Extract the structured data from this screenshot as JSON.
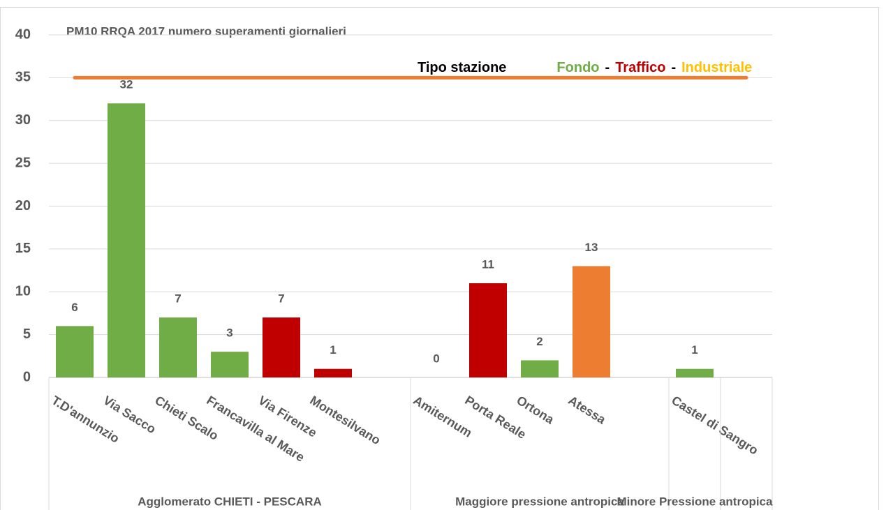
{
  "chart_data": {
    "type": "bar",
    "title": "PM10 RRQA  2017 numero superamenti giornalieri",
    "categories": [
      "T.D'annunzio",
      "Via Sacco",
      "Chieti Scalo",
      "Francavilla al Mare",
      "Via Firenze",
      "Montesilvano",
      null,
      "Amiternum",
      "Porta Reale",
      "Ortona",
      "Atessa",
      null,
      "Castel di Sangro",
      null
    ],
    "values": [
      6,
      32,
      7,
      3,
      7,
      1,
      null,
      0,
      11,
      2,
      13,
      null,
      1,
      null
    ],
    "colors": [
      "#70ad47",
      "#70ad47",
      "#70ad47",
      "#70ad47",
      "#c00000",
      "#c00000",
      null,
      "#70ad47",
      "#c00000",
      "#70ad47",
      "#ed7d31",
      null,
      "#70ad47",
      null
    ],
    "groups": [
      {
        "label": "Agglomerato CHIETI - PESCARA",
        "span": [
          0,
          6
        ]
      },
      {
        "label": "Maggiore pressione antropica",
        "span": [
          7,
          11
        ]
      },
      {
        "label": "Minore Pressione antropica",
        "span": [
          12,
          12
        ]
      }
    ],
    "reference_line": {
      "value": 35,
      "color": "#ed7d31"
    },
    "legend_text": [
      {
        "text": "Tipo stazione",
        "color": "#000000"
      },
      {
        "text": "Fondo",
        "color": "#70ad47"
      },
      {
        "text": "-",
        "color": "#000000"
      },
      {
        "text": "Traffico",
        "color": "#c00000"
      },
      {
        "text": "-",
        "color": "#000000"
      },
      {
        "text": "Industriale",
        "color": "#ffc000"
      }
    ],
    "ylim": [
      0,
      40
    ],
    "yticks": [
      0,
      5,
      10,
      15,
      20,
      25,
      30,
      35,
      40
    ],
    "grid": true
  }
}
